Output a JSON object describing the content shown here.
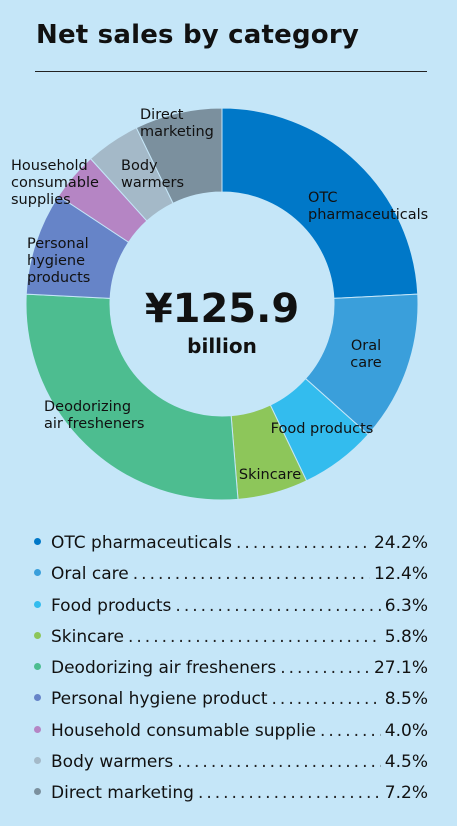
{
  "title": "Net sales by category",
  "center": {
    "value": "¥125.9",
    "unit": "billion"
  },
  "chart_data": {
    "type": "pie",
    "title": "Net sales by category",
    "donut": true,
    "total_label": "¥125.9 billion",
    "series": [
      {
        "slice_label": [
          "OTC",
          "pharmaceuticals"
        ],
        "legend": "OTC pharmaceuticals",
        "value": 24.2,
        "percent_text": "24.2%",
        "color": "#0078c8"
      },
      {
        "slice_label": [
          "Oral",
          "care"
        ],
        "legend": "Oral care",
        "value": 12.4,
        "percent_text": "12.4%",
        "color": "#3a9fdb"
      },
      {
        "slice_label": [
          "Food products"
        ],
        "legend": "Food products",
        "value": 6.3,
        "percent_text": "6.3%",
        "color": "#33bcee"
      },
      {
        "slice_label": [
          "Skincare"
        ],
        "legend": "Skincare",
        "value": 5.8,
        "percent_text": "5.8%",
        "color": "#8dc65a"
      },
      {
        "slice_label": [
          "Deodorizing",
          "air fresheners"
        ],
        "legend": "Deodorizing air fresheners",
        "value": 27.1,
        "percent_text": "27.1%",
        "color": "#4dbd90"
      },
      {
        "slice_label": [
          "Personal",
          "hygiene",
          "products"
        ],
        "legend": "Personal hygiene product",
        "value": 8.5,
        "percent_text": "8.5%",
        "color": "#6684c8"
      },
      {
        "slice_label": [
          "Household",
          "consumable",
          "supplies"
        ],
        "legend": "Household consumable supplie",
        "value": 4.0,
        "percent_text": "4.0%",
        "color": "#b585c4"
      },
      {
        "slice_label": [
          "Body",
          "warmers"
        ],
        "legend": "Body warmers",
        "value": 4.5,
        "percent_text": "4.5%",
        "color": "#a4b9c8"
      },
      {
        "slice_label": [
          "Direct",
          "marketing"
        ],
        "legend": "Direct marketing",
        "value": 7.2,
        "percent_text": "7.2%",
        "color": "#7b909e"
      }
    ]
  }
}
